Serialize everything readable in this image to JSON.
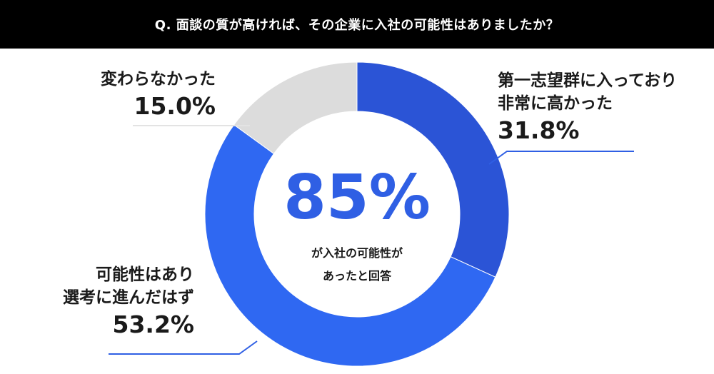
{
  "header": {
    "title": "Q. 面談の質が高ければ、その企業に入社の可能性はありましたか？"
  },
  "center": {
    "value": "85%",
    "caption_line1": "が入社の可能性が",
    "caption_line2": "あったと回答"
  },
  "chart_data": {
    "type": "pie",
    "donut": true,
    "title": "Q. 面談の質が高ければ、その企業に入社の可能性はありましたか？",
    "slices": [
      {
        "label_lines": [
          "第一志望群に入っており",
          "非常に高かった"
        ],
        "value": 31.8,
        "value_label": "31.8%",
        "color": "#2b54d6"
      },
      {
        "label_lines": [
          "可能性はあり",
          "選考に進んだはず"
        ],
        "value": 53.2,
        "value_label": "53.2%",
        "color": "#2f68f2"
      },
      {
        "label_lines": [
          "変わらなかった"
        ],
        "value": 15.0,
        "value_label": "15.0%",
        "color": "#dcdcdc"
      }
    ]
  }
}
